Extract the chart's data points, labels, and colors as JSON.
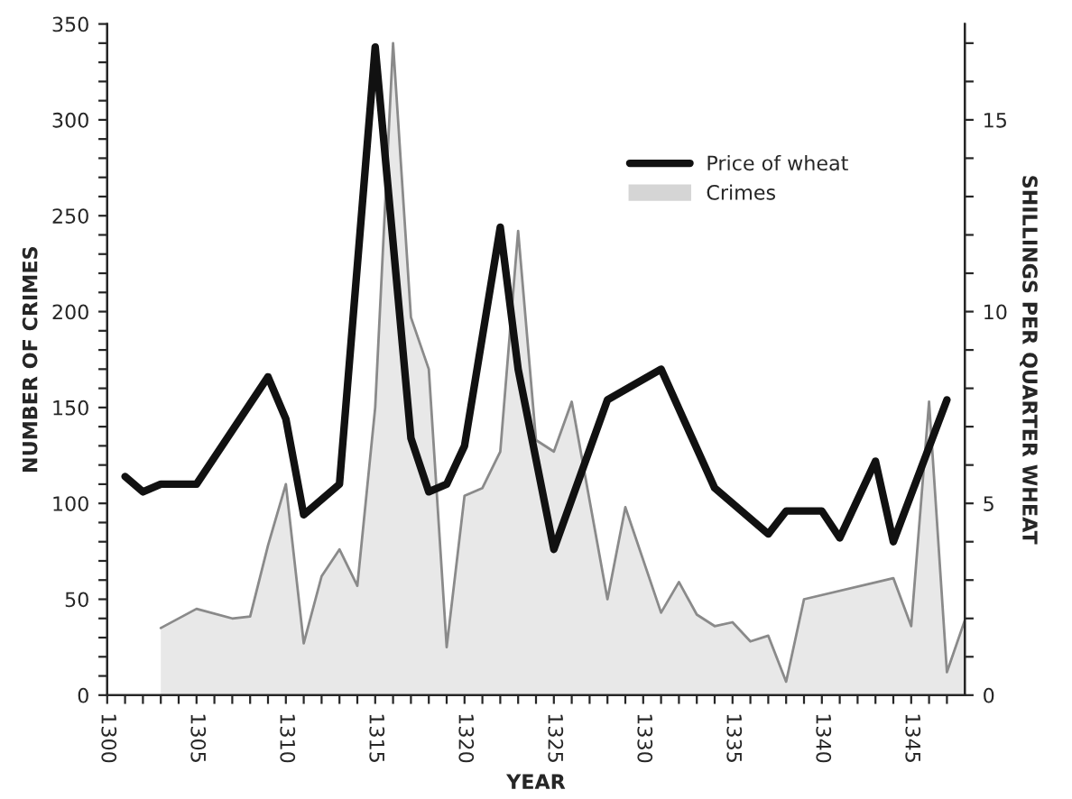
{
  "chart_data": {
    "type": "line",
    "xlabel": "YEAR",
    "ylabel": "NUMBER OF CRIMES",
    "y2label": "SHILLINGS PER QUARTER WHEAT",
    "series": [
      {
        "name": "Price of wheat",
        "axis": "y2",
        "color": "#111111",
        "x": [
          1301,
          1302,
          1303,
          1305,
          1309,
          1310,
          1311,
          1313,
          1315,
          1317,
          1318,
          1319,
          1320,
          1322,
          1323,
          1325,
          1328,
          1331,
          1334,
          1337,
          1338,
          1340,
          1341,
          1343,
          1344,
          1347
        ],
        "values": [
          5.7,
          5.3,
          5.5,
          5.5,
          8.3,
          7.2,
          4.7,
          5.5,
          16.9,
          6.7,
          5.3,
          5.5,
          6.5,
          12.2,
          8.5,
          3.8,
          7.7,
          8.5,
          5.4,
          4.2,
          4.8,
          4.8,
          4.1,
          6.1,
          4.0,
          7.7
        ]
      },
      {
        "name": "Crimes",
        "type": "area",
        "color": "#8a8a8a",
        "x": [
          1303,
          1305,
          1307,
          1308,
          1309,
          1310,
          1311,
          1312,
          1313,
          1314,
          1315,
          1316,
          1317,
          1318,
          1319,
          1320,
          1321,
          1322,
          1323,
          1324,
          1325,
          1326,
          1328,
          1329,
          1331,
          1332,
          1333,
          1334,
          1335,
          1336,
          1337,
          1338,
          1339,
          1344,
          1345,
          1346,
          1347,
          1348
        ],
        "values": [
          35,
          45,
          40,
          41,
          78,
          110,
          27,
          62,
          76,
          57,
          150,
          340,
          197,
          170,
          25,
          104,
          108,
          127,
          242,
          133,
          127,
          153,
          50,
          98,
          43,
          59,
          42,
          36,
          38,
          28,
          31,
          7,
          50,
          61,
          36,
          153,
          12,
          39
        ]
      }
    ],
    "xlim": [
      1300,
      1348
    ],
    "xticks": [
      1300,
      {
        "value": 1301,
        "label": null
      },
      {
        "value": 1302,
        "label": null
      },
      {
        "value": 1303,
        "label": null
      },
      {
        "value": 1304,
        "label": null
      },
      1305,
      {
        "value": 1306,
        "label": null
      },
      {
        "value": 1307,
        "label": null
      },
      {
        "value": 1308,
        "label": null
      },
      {
        "value": 1309,
        "label": null
      },
      1310,
      {
        "value": 1311,
        "label": null
      },
      {
        "value": 1312,
        "label": null
      },
      {
        "value": 1313,
        "label": null
      },
      {
        "value": 1314,
        "label": null
      },
      1315,
      {
        "value": 1316,
        "label": null
      },
      {
        "value": 1317,
        "label": null
      },
      {
        "value": 1318,
        "label": null
      },
      {
        "value": 1319,
        "label": null
      },
      1320,
      {
        "value": 1321,
        "label": null
      },
      {
        "value": 1322,
        "label": null
      },
      {
        "value": 1323,
        "label": null
      },
      {
        "value": 1324,
        "label": null
      },
      1325,
      {
        "value": 1326,
        "label": null
      },
      {
        "value": 1327,
        "label": null
      },
      {
        "value": 1328,
        "label": null
      },
      {
        "value": 1329,
        "label": null
      },
      1330,
      {
        "value": 1331,
        "label": null
      },
      {
        "value": 1332,
        "label": null
      },
      {
        "value": 1333,
        "label": null
      },
      {
        "value": 1334,
        "label": null
      },
      1335,
      {
        "value": 1336,
        "label": null
      },
      {
        "value": 1337,
        "label": null
      },
      {
        "value": 1338,
        "label": null
      },
      {
        "value": 1339,
        "label": null
      },
      1340,
      {
        "value": 1341,
        "label": null
      },
      {
        "value": 1342,
        "label": null
      },
      {
        "value": 1343,
        "label": null
      },
      {
        "value": 1344,
        "label": null
      },
      1345,
      {
        "value": 1346,
        "label": null
      },
      {
        "value": 1347,
        "label": null
      }
    ],
    "ylim": [
      0,
      350
    ],
    "yticks": [
      0,
      {
        "value": 10,
        "label": null
      },
      {
        "value": 20,
        "label": null
      },
      {
        "value": 30,
        "label": null
      },
      {
        "value": 40,
        "label": null
      },
      50,
      {
        "value": 60,
        "label": null
      },
      {
        "value": 70,
        "label": null
      },
      {
        "value": 80,
        "label": null
      },
      {
        "value": 90,
        "label": null
      },
      100,
      {
        "value": 110,
        "label": null
      },
      {
        "value": 120,
        "label": null
      },
      {
        "value": 130,
        "label": null
      },
      {
        "value": 140,
        "label": null
      },
      150,
      {
        "value": 160,
        "label": null
      },
      {
        "value": 170,
        "label": null
      },
      {
        "value": 180,
        "label": null
      },
      {
        "value": 190,
        "label": null
      },
      200,
      {
        "value": 210,
        "label": null
      },
      {
        "value": 220,
        "label": null
      },
      {
        "value": 230,
        "label": null
      },
      {
        "value": 240,
        "label": null
      },
      250,
      {
        "value": 260,
        "label": null
      },
      {
        "value": 270,
        "label": null
      },
      {
        "value": 280,
        "label": null
      },
      {
        "value": 290,
        "label": null
      },
      300,
      {
        "value": 310,
        "label": null
      },
      {
        "value": 320,
        "label": null
      },
      {
        "value": 330,
        "label": null
      },
      {
        "value": 340,
        "label": null
      },
      350
    ],
    "y2lim": [
      0,
      17.5
    ],
    "y2ticks": [
      0,
      {
        "value": 1,
        "label": null
      },
      {
        "value": 2,
        "label": null
      },
      {
        "value": 3,
        "label": null
      },
      {
        "value": 4,
        "label": null
      },
      5,
      {
        "value": 6,
        "label": null
      },
      {
        "value": 7,
        "label": null
      },
      {
        "value": 8,
        "label": null
      },
      {
        "value": 9,
        "label": null
      },
      10,
      {
        "value": 11,
        "label": null
      },
      {
        "value": 12,
        "label": null
      },
      {
        "value": 13,
        "label": null
      },
      {
        "value": 14,
        "label": null
      },
      15,
      {
        "value": 16,
        "label": null
      },
      {
        "value": 17,
        "label": null
      }
    ],
    "legend": "top right",
    "grid": false
  }
}
